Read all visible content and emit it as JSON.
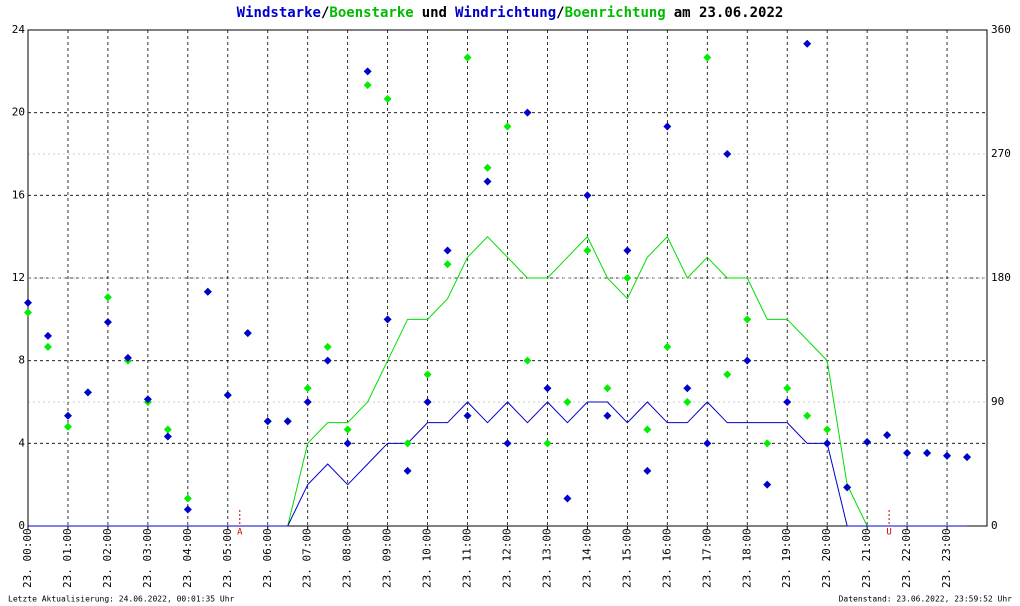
{
  "chart_data": {
    "type": "line",
    "title_parts": [
      "/",
      "und",
      "/",
      "am 23.06.2022"
    ],
    "footer_left": "Letzte Aktualisierung: 24.06.2022, 00:01:35 Uhr",
    "footer_right": "Datenstand: 23.06.2022, 23:59:52 Uhr",
    "annotations": [
      {
        "x": 5.3,
        "text": "A"
      },
      {
        "x": 21.55,
        "text": "U"
      }
    ],
    "x": [
      0,
      0.5,
      1,
      1.5,
      2,
      2.5,
      3,
      3.5,
      4,
      4.5,
      5,
      5.5,
      6,
      6.5,
      7,
      7.5,
      8,
      8.5,
      9,
      9.5,
      10,
      10.5,
      11,
      11.5,
      12,
      12.5,
      13,
      13.5,
      14,
      14.5,
      15,
      15.5,
      16,
      16.5,
      17,
      17.5,
      18,
      18.5,
      19,
      19.5,
      20,
      20.5,
      21,
      21.5,
      22,
      22.5,
      23,
      23.5
    ],
    "xlim": [
      0,
      24
    ],
    "xticks": [
      {
        "value": 0,
        "label": "23. 00:00"
      },
      {
        "value": 1,
        "label": "23. 01:00"
      },
      {
        "value": 2,
        "label": "23. 02:00"
      },
      {
        "value": 3,
        "label": "23. 03:00"
      },
      {
        "value": 4,
        "label": "23. 04:00"
      },
      {
        "value": 5,
        "label": "23. 05:00"
      },
      {
        "value": 6,
        "label": "23. 06:00"
      },
      {
        "value": 7,
        "label": "23. 07:00"
      },
      {
        "value": 8,
        "label": "23. 08:00"
      },
      {
        "value": 9,
        "label": "23. 09:00"
      },
      {
        "value": 10,
        "label": "23. 10:00"
      },
      {
        "value": 11,
        "label": "23. 11:00"
      },
      {
        "value": 12,
        "label": "23. 12:00"
      },
      {
        "value": 13,
        "label": "23. 13:00"
      },
      {
        "value": 14,
        "label": "23. 14:00"
      },
      {
        "value": 15,
        "label": "23. 15:00"
      },
      {
        "value": 16,
        "label": "23. 16:00"
      },
      {
        "value": 17,
        "label": "23. 17:00"
      },
      {
        "value": 18,
        "label": "23. 18:00"
      },
      {
        "value": 19,
        "label": "23. 19:00"
      },
      {
        "value": 20,
        "label": "23. 20:00"
      },
      {
        "value": 21,
        "label": "23. 21:00"
      },
      {
        "value": 22,
        "label": "23. 22:00"
      },
      {
        "value": 23,
        "label": "23. 23:00"
      }
    ],
    "ylim": [
      0,
      24
    ],
    "yticks": [
      0,
      4,
      8,
      12,
      16,
      20,
      24
    ],
    "y2lim": [
      0,
      360
    ],
    "y2ticks": [
      0,
      90,
      180,
      270,
      360
    ],
    "grid": true,
    "series": [
      {
        "name": "Windstarke",
        "color": "#0000cc",
        "mark": "line",
        "values": [
          0,
          0,
          0,
          0,
          0,
          0,
          0,
          0,
          0,
          0,
          0,
          0,
          0,
          0,
          2,
          3,
          2,
          3,
          4,
          4,
          5,
          5,
          6,
          5,
          6,
          5,
          6,
          5,
          6,
          6,
          5,
          6,
          5,
          5,
          6,
          5,
          5,
          5,
          5,
          4,
          4,
          0,
          0,
          0,
          0,
          0,
          0,
          0
        ]
      },
      {
        "name": "Boenstarke",
        "color": "#00dd00",
        "mark": "line",
        "values": [
          0,
          0,
          0,
          0,
          0,
          0,
          0,
          0,
          0,
          0,
          0,
          0,
          0,
          0,
          4,
          5,
          5,
          6,
          8,
          10,
          10,
          11,
          13,
          14,
          13,
          12,
          12,
          13,
          14,
          12,
          11,
          13,
          14,
          12,
          13,
          12,
          12,
          10,
          10,
          9,
          8,
          2,
          0,
          0,
          0,
          0,
          0,
          0
        ]
      },
      {
        "name": "Windrichtung",
        "color": "#0000cc",
        "mark": "diamond",
        "axis": "y2",
        "values": [
          162,
          138,
          80,
          97,
          148,
          122,
          92,
          65,
          12,
          170,
          95,
          140,
          76,
          76,
          90,
          120,
          60,
          330,
          150,
          40,
          90,
          200,
          80,
          250,
          60,
          300,
          100,
          20,
          240,
          80,
          200,
          40,
          290,
          100,
          60,
          270,
          120,
          30,
          90,
          350,
          60,
          28,
          61,
          66,
          53,
          53,
          51,
          50
        ]
      },
      {
        "name": "Boenrichtung",
        "color": "#00ee00",
        "mark": "diamond",
        "axis": "y2",
        "values": [
          155,
          130,
          72,
          97,
          166,
          120,
          90,
          70,
          20,
          170,
          95,
          140,
          76,
          76,
          100,
          130,
          70,
          320,
          310,
          60,
          110,
          190,
          340,
          260,
          290,
          120,
          60,
          90,
          200,
          100,
          180,
          70,
          130,
          90,
          340,
          110,
          150,
          60,
          100,
          80,
          70,
          28,
          61,
          66,
          53,
          53,
          51,
          50
        ]
      }
    ]
  }
}
